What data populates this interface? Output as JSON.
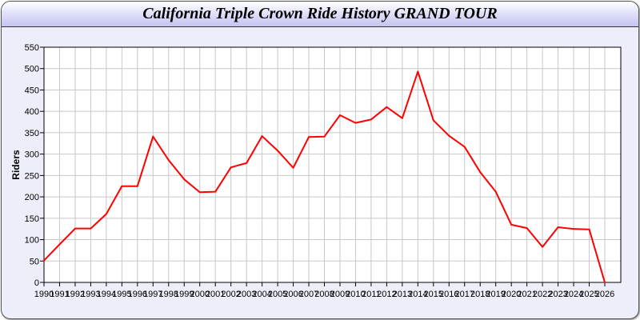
{
  "chart_data": {
    "type": "line",
    "title": "California Triple Crown Ride History GRAND TOUR",
    "xlabel": "",
    "ylabel": "Riders",
    "ylim": [
      0,
      550
    ],
    "yticks": [
      0,
      50,
      100,
      150,
      200,
      250,
      300,
      350,
      400,
      450,
      500,
      550
    ],
    "grid": true,
    "line_color": "#ff0000",
    "x": [
      1990,
      1991,
      1992,
      1993,
      1994,
      1995,
      1996,
      1997,
      1998,
      1999,
      2000,
      2001,
      2002,
      2003,
      2004,
      2005,
      2006,
      2007,
      2008,
      2009,
      2010,
      2011,
      2012,
      2013,
      2014,
      2015,
      2016,
      2017,
      2018,
      2019,
      2020,
      2021,
      2022,
      2023,
      2024,
      2025,
      2026
    ],
    "series": [
      {
        "values": [
          51,
          89,
          126,
          126,
          160,
          225,
          225,
          341,
          286,
          241,
          211,
          212,
          269,
          279,
          342,
          308,
          268,
          340,
          341,
          391,
          373,
          381,
          410,
          384,
          493,
          379,
          343,
          317,
          258,
          212,
          135,
          127,
          83,
          129,
          125,
          124,
          0
        ]
      }
    ]
  }
}
